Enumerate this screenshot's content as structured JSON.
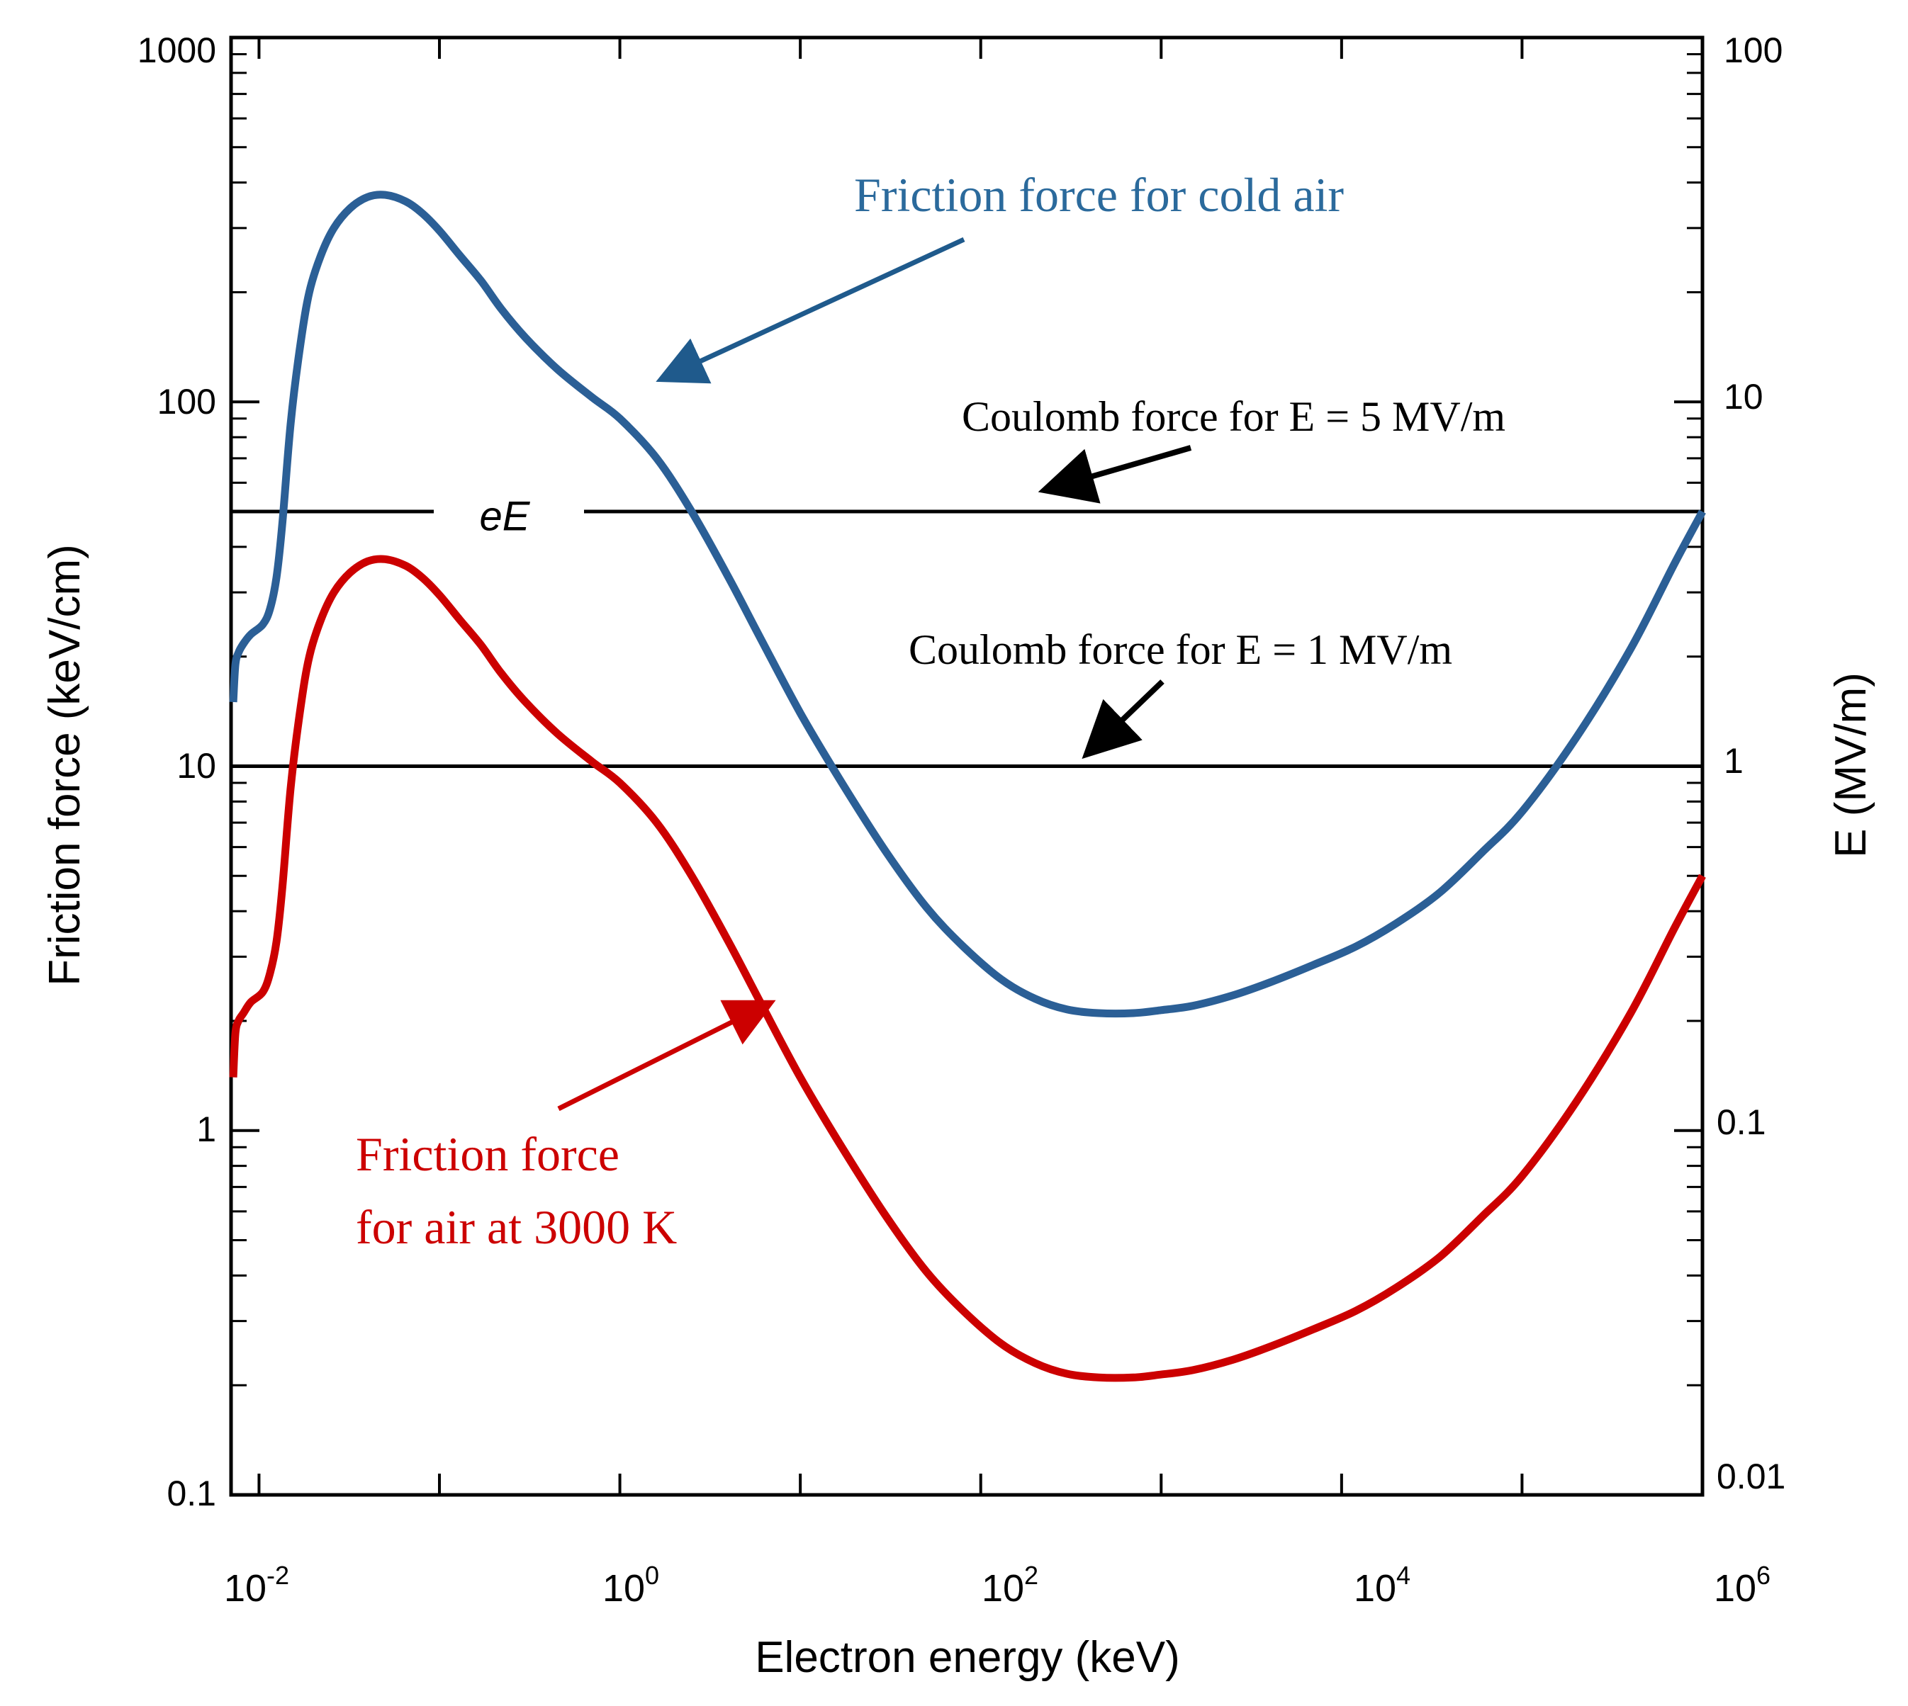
{
  "chart_data": {
    "type": "line",
    "xscale": "log",
    "yscale": "log",
    "xlabel": "Electron energy (keV)",
    "ylabel": "Friction force (keV/cm)",
    "ylabel_right": "E (MV/m)",
    "xlim": [
      0.007,
      1000000
    ],
    "ylim": [
      0.1,
      1000
    ],
    "ylim_right": [
      0.01,
      100
    ],
    "x_ticks": [
      {
        "value": 0.01,
        "base": "10",
        "exp": "-2"
      },
      {
        "value": 1,
        "base": "10",
        "exp": "0"
      },
      {
        "value": 100,
        "base": "10",
        "exp": "2"
      },
      {
        "value": 10000,
        "base": "10",
        "exp": "4"
      },
      {
        "value": 1000000,
        "base": "10",
        "exp": "6"
      }
    ],
    "y_ticks": [
      {
        "value": 0.1,
        "label": "0.1"
      },
      {
        "value": 1,
        "label": "1"
      },
      {
        "value": 10,
        "label": "10"
      },
      {
        "value": 100,
        "label": "100"
      },
      {
        "value": 1000,
        "label": "1000"
      }
    ],
    "y_ticks_right": [
      {
        "value": 0.01,
        "label": "0.01"
      },
      {
        "value": 0.1,
        "label": "0.1"
      },
      {
        "value": 1,
        "label": "1"
      },
      {
        "value": 10,
        "label": "10"
      },
      {
        "value": 100,
        "label": "100"
      }
    ],
    "series": [
      {
        "name": "Friction force for cold air",
        "color": "#2b5f96",
        "x": [
          0.0072,
          0.0074,
          0.0077,
          0.0082,
          0.009,
          0.0105,
          0.0115,
          0.0125,
          0.0135,
          0.015,
          0.017,
          0.019,
          0.022,
          0.026,
          0.032,
          0.04,
          0.05,
          0.065,
          0.08,
          0.1,
          0.13,
          0.17,
          0.22,
          0.3,
          0.45,
          0.7,
          1.0,
          1.6,
          2.5,
          4,
          6,
          10,
          17,
          30,
          50,
          80,
          130,
          200,
          300,
          450,
          700,
          1000,
          1500,
          2500,
          4000,
          7000,
          12000,
          20000,
          35000,
          60000,
          100000,
          200000,
          400000,
          700000,
          1000000
        ],
        "values": [
          15,
          19,
          20.5,
          21.7,
          23,
          24.5,
          27,
          33,
          47,
          88,
          145,
          200,
          252,
          300,
          340,
          365,
          370,
          355,
          330,
          295,
          252,
          215,
          180,
          150,
          123,
          103,
          90,
          70,
          50,
          33,
          22.5,
          14,
          9,
          5.8,
          4.1,
          3.2,
          2.6,
          2.3,
          2.15,
          2.1,
          2.1,
          2.14,
          2.2,
          2.35,
          2.55,
          2.85,
          3.2,
          3.7,
          4.5,
          5.8,
          7.5,
          12,
          21,
          36,
          50
        ]
      },
      {
        "name": "Friction force for air at 3000 K",
        "color": "#cc0000",
        "x": [
          0.0072,
          0.0074,
          0.0077,
          0.0082,
          0.009,
          0.0105,
          0.0115,
          0.0125,
          0.0135,
          0.015,
          0.017,
          0.019,
          0.022,
          0.026,
          0.032,
          0.04,
          0.05,
          0.065,
          0.08,
          0.1,
          0.13,
          0.17,
          0.22,
          0.3,
          0.45,
          0.7,
          1.0,
          1.6,
          2.5,
          4,
          6,
          10,
          17,
          30,
          50,
          80,
          130,
          200,
          300,
          450,
          700,
          1000,
          1500,
          2500,
          4000,
          7000,
          12000,
          20000,
          35000,
          60000,
          100000,
          200000,
          400000,
          700000,
          1000000
        ],
        "values": [
          1.4,
          1.85,
          2.0,
          2.1,
          2.25,
          2.4,
          2.7,
          3.3,
          4.7,
          8.8,
          14.5,
          20,
          25.2,
          30,
          34,
          36.5,
          37,
          35.5,
          33,
          29.5,
          25.2,
          21.5,
          18,
          15,
          12.3,
          10.3,
          9.0,
          7.0,
          5.0,
          3.3,
          2.25,
          1.4,
          0.9,
          0.58,
          0.41,
          0.32,
          0.26,
          0.23,
          0.215,
          0.21,
          0.21,
          0.214,
          0.22,
          0.235,
          0.255,
          0.285,
          0.32,
          0.37,
          0.45,
          0.58,
          0.75,
          1.2,
          2.1,
          3.6,
          5.0
        ]
      }
    ],
    "reference_lines": [
      {
        "name": "Coulomb force for E = 5 MV/m",
        "y": 50,
        "inline_label": "eE"
      },
      {
        "name": "Coulomb force for E = 1 MV/m",
        "y": 10
      }
    ],
    "annotations": [
      {
        "text": "Friction force for cold air",
        "color": "#2b6a9c",
        "arrow_to": {
          "x": 1.3,
          "y": 110
        }
      },
      {
        "text": "Coulomb force for E = 5 MV/m",
        "color": "#000000",
        "arrow_to": {
          "x": 250,
          "y": 55
        }
      },
      {
        "text": "Coulomb force for E = 1 MV/m",
        "color": "#000000",
        "arrow_to": {
          "x": 300,
          "y": 10.3
        }
      },
      {
        "text_lines": [
          "Friction force",
          "for air at 3000 K"
        ],
        "color": "#cc0000",
        "arrow_to": {
          "x": 8,
          "y": 2.2
        }
      }
    ]
  }
}
